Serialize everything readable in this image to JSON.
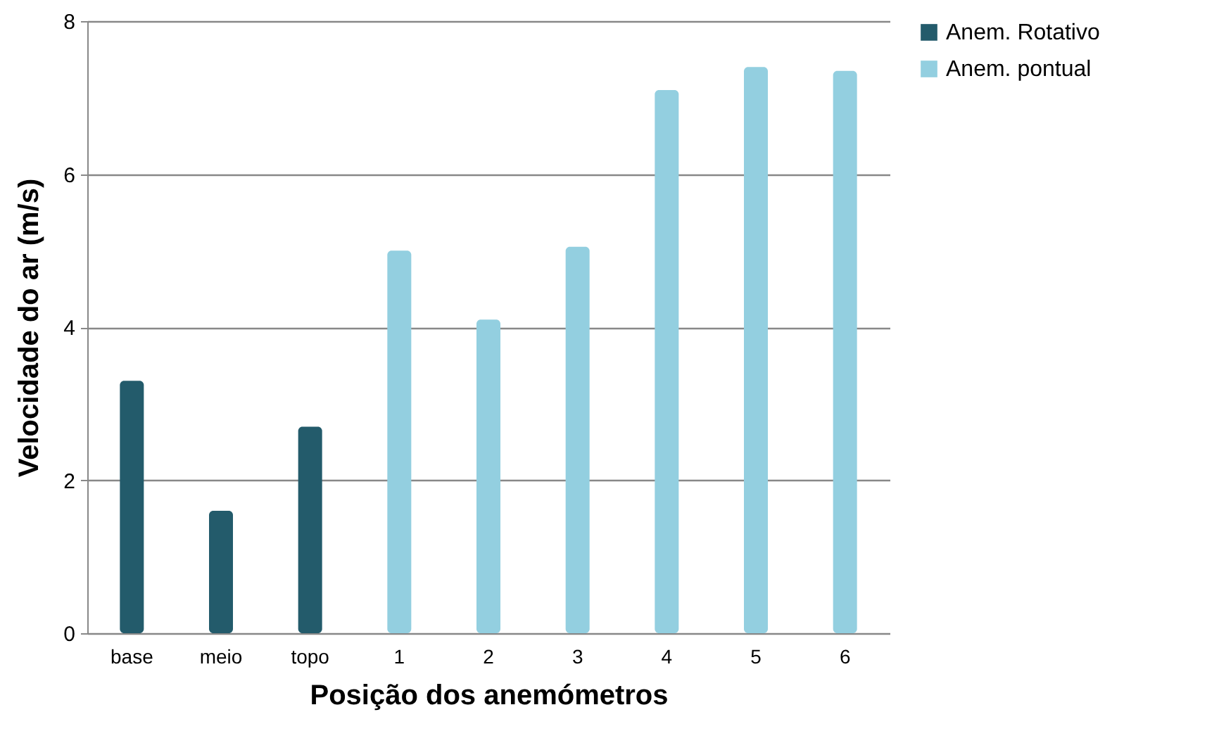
{
  "chart_data": {
    "type": "bar",
    "xlabel": "Posição dos anemómetros",
    "ylabel": "Velocidade do ar (m/s)",
    "categories": [
      "base",
      "meio",
      "topo",
      "1",
      "2",
      "3",
      "4",
      "5",
      "6"
    ],
    "series": [
      {
        "name": "Anem. Rotativo",
        "color": "#235b6b",
        "values": [
          3.3,
          1.6,
          2.7,
          null,
          null,
          null,
          null,
          null,
          null
        ]
      },
      {
        "name": "Anem. pontual",
        "color": "#93cfe0",
        "values": [
          null,
          null,
          null,
          5.0,
          4.1,
          5.05,
          7.1,
          7.4,
          7.35
        ]
      }
    ],
    "ylim": [
      0,
      8
    ],
    "yticks": [
      0,
      2,
      4,
      6,
      8
    ],
    "grid": "y",
    "legend": "right"
  }
}
